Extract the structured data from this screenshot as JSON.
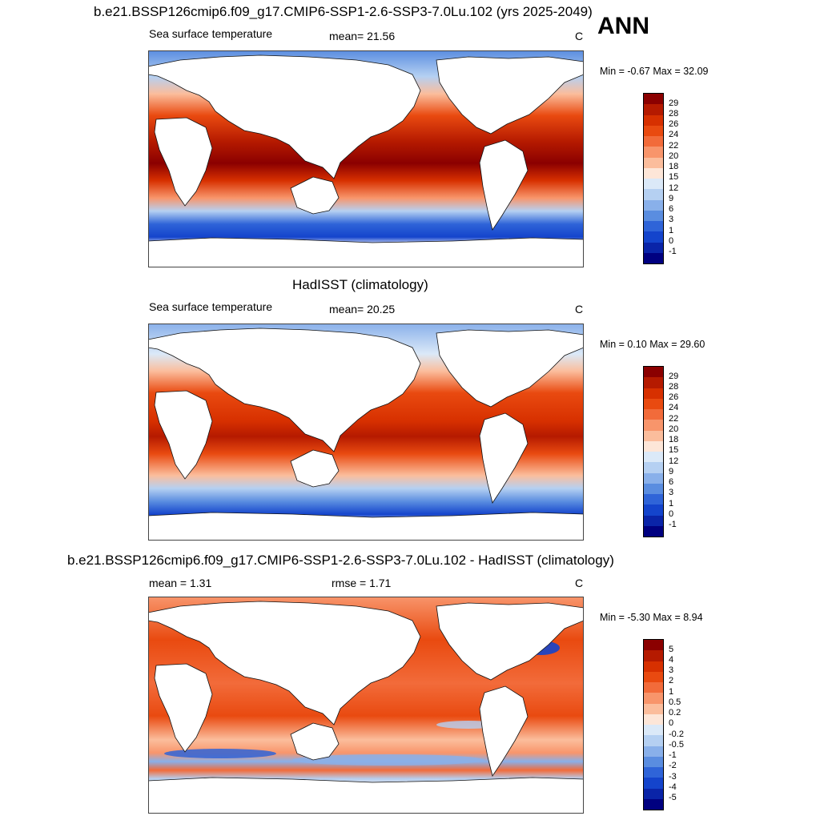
{
  "ann_label": "ANN",
  "panels": [
    {
      "id": "model",
      "title": "b.e21.BSSP126cmip6.f09_g17.CMIP6-SSP1-2.6-SSP3-7.0Lu.102 (yrs 2025-2049)",
      "left_label": "Sea surface temperature",
      "stat": "mean=  21.56",
      "units": "C",
      "minmax": "Min =  -0.67 Max =  32.09",
      "colorbar_labels": [
        "29",
        "28",
        "26",
        "24",
        "22",
        "20",
        "18",
        "15",
        "12",
        "9",
        "6",
        "3",
        "1",
        "0",
        "-1"
      ],
      "colorbar_colors": [
        "#8b0000",
        "#b51a00",
        "#d73000",
        "#e94a10",
        "#f26b3a",
        "#f8956b",
        "#fbbd9c",
        "#fde6d8",
        "#dbe9f8",
        "#b5d0f2",
        "#89b0ea",
        "#5a8de0",
        "#2f64d8",
        "#1444cc",
        "#0a24a8",
        "#000080"
      ]
    },
    {
      "id": "obs",
      "title": "HadISST (climatology)",
      "left_label": "Sea surface temperature",
      "stat": "mean=  20.25",
      "units": "C",
      "minmax": "Min =   0.10 Max =  29.60",
      "colorbar_labels": [
        "29",
        "28",
        "26",
        "24",
        "22",
        "20",
        "18",
        "15",
        "12",
        "9",
        "6",
        "3",
        "1",
        "0",
        "-1"
      ],
      "colorbar_colors": [
        "#8b0000",
        "#b51a00",
        "#d73000",
        "#e94a10",
        "#f26b3a",
        "#f8956b",
        "#fbbd9c",
        "#fde6d8",
        "#dbe9f8",
        "#b5d0f2",
        "#89b0ea",
        "#5a8de0",
        "#2f64d8",
        "#1444cc",
        "#0a24a8",
        "#000080"
      ]
    },
    {
      "id": "diff",
      "title": "b.e21.BSSP126cmip6.f09_g17.CMIP6-SSP1-2.6-SSP3-7.0Lu.102 - HadISST (climatology)",
      "left_label": "mean =   1.31",
      "stat": "rmse =   1.71",
      "units": "C",
      "minmax": "Min =  -5.30 Max =   8.94",
      "colorbar_labels": [
        "5",
        "4",
        "3",
        "2",
        "1",
        "0.5",
        "0.2",
        "0",
        "-0.2",
        "-0.5",
        "-1",
        "-2",
        "-3",
        "-4",
        "-5"
      ],
      "colorbar_colors": [
        "#8b0000",
        "#b51a00",
        "#d73000",
        "#e94a10",
        "#f26b3a",
        "#f8956b",
        "#fbbd9c",
        "#fde6d8",
        "#dbe9f8",
        "#b5d0f2",
        "#89b0ea",
        "#5a8de0",
        "#2f64d8",
        "#1444cc",
        "#0a24a8",
        "#000080"
      ]
    }
  ]
}
